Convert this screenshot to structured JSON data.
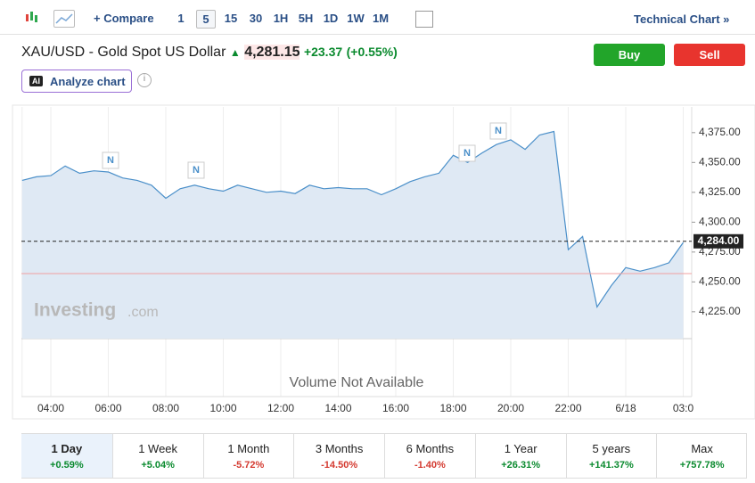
{
  "toolbar": {
    "compare": "Compare",
    "intervals": [
      "1",
      "5",
      "15",
      "30",
      "1H",
      "5H",
      "1D",
      "1W",
      "1M"
    ],
    "technical_chart": "Technical Chart »"
  },
  "header": {
    "title": "XAU/USD - Gold Spot US Dollar",
    "price": "4,281.15",
    "change": "+23.37",
    "change_pct": "(+0.55%)",
    "buy": "Buy",
    "sell": "Sell",
    "ai_badge": "AI",
    "analyze": "Analyze chart"
  },
  "chart_data": {
    "type": "area",
    "color": "#4a8fc9",
    "categories": [
      "",
      null,
      "04:00",
      null,
      null,
      null,
      "06:00",
      null,
      null,
      null,
      "08:00",
      null,
      null,
      null,
      "10:00",
      null,
      null,
      null,
      "12:00",
      null,
      null,
      null,
      "14:00",
      null,
      null,
      null,
      "16:00",
      null,
      null,
      null,
      "18:00",
      null,
      null,
      null,
      "20:00",
      null,
      null,
      null,
      "22:00",
      null,
      null,
      null,
      "6/18",
      null,
      null,
      null,
      "03:0"
    ],
    "values": [
      4335,
      4338,
      4339,
      4347,
      4341,
      4343,
      4342,
      4337,
      4335,
      4331,
      4320,
      4328,
      4331,
      4328,
      4326,
      4331,
      4328,
      4325,
      4326,
      4324,
      4331,
      4328,
      4329,
      4328,
      4328,
      4323,
      4328,
      4334,
      4338,
      4341,
      4356,
      4350,
      4358,
      4365,
      4369,
      4361,
      4373,
      4376,
      4277,
      4288,
      4229,
      4247,
      4262,
      4259,
      4262,
      4266,
      4283
    ],
    "ylim": [
      4202.5,
      4396.5
    ],
    "yticks": [
      {
        "value": 4225,
        "label": "4,225.00"
      },
      {
        "value": 4250,
        "label": "4,250.00"
      },
      {
        "value": 4275,
        "label": "4,275.00"
      },
      {
        "value": 4300,
        "label": "4,300.00"
      },
      {
        "value": 4325,
        "label": "4,325.00"
      },
      {
        "value": 4350,
        "label": "4,350.00"
      },
      {
        "value": 4375,
        "label": "4,375.00"
      }
    ],
    "current_price": {
      "value": 4284,
      "label": "4,284.00"
    },
    "previous_close": 4257,
    "news_markers": [
      "N",
      "N",
      "N",
      "N"
    ],
    "watermark": {
      "brand": "Investing",
      "suffix": ".com"
    },
    "volume_note": "Volume Not Available"
  },
  "periods": [
    {
      "label": "1 Day",
      "change": "+0.59%"
    },
    {
      "label": "1 Week",
      "change": "+5.04%"
    },
    {
      "label": "1 Month",
      "change": "-5.72%"
    },
    {
      "label": "3 Months",
      "change": "-14.50%"
    },
    {
      "label": "6 Months",
      "change": "-1.40%"
    },
    {
      "label": "1 Year",
      "change": "+26.31%"
    },
    {
      "label": "5 years",
      "change": "+141.37%"
    },
    {
      "label": "Max",
      "change": "+757.78%"
    }
  ]
}
